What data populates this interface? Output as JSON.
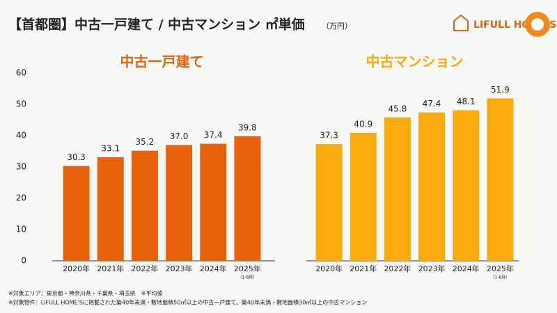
{
  "header": {
    "title": "【首都圏】中古一戸建て / 中古マンション ㎡単価",
    "unit": "（万円）",
    "logo": "LIFULL HOME'S"
  },
  "chart_data": [
    {
      "type": "bar",
      "title": "中古一戸建て",
      "categories": [
        "2020年",
        "2021年",
        "2022年",
        "2023年",
        "2024年",
        "2025年"
      ],
      "category_notes": [
        null,
        null,
        null,
        null,
        null,
        "（1-8月）"
      ],
      "values": [
        30.3,
        33.1,
        35.2,
        37.0,
        37.4,
        39.8
      ],
      "value_labels": [
        "30.3",
        "33.1",
        "35.2",
        "37.0",
        "37.4",
        "39.8"
      ],
      "color": "#e8620c",
      "ylim": [
        0,
        60
      ],
      "yticks": [
        0,
        10,
        20,
        30,
        40,
        50,
        60
      ]
    },
    {
      "type": "bar",
      "title": "中古マンション",
      "categories": [
        "2020年",
        "2021年",
        "2022年",
        "2023年",
        "2024年",
        "2025年"
      ],
      "category_notes": [
        null,
        null,
        null,
        null,
        null,
        "（1-8月）"
      ],
      "values": [
        37.3,
        40.9,
        45.8,
        47.4,
        48.1,
        51.9
      ],
      "value_labels": [
        "37.3",
        "40.9",
        "45.8",
        "47.4",
        "48.1",
        "51.9"
      ],
      "color": "#f9ab0e",
      "ylim": [
        0,
        60
      ]
    }
  ],
  "notes": [
    "※対象エリア：東京都・神奈川県・千葉県・埼玉県　※平均値",
    "※対象物件：LIFULL HOME'Sに掲載された築40年未満・敷地面積50㎡以上の中古一戸建て、築40年未満・敷地面積30㎡以上の中古マンション"
  ]
}
